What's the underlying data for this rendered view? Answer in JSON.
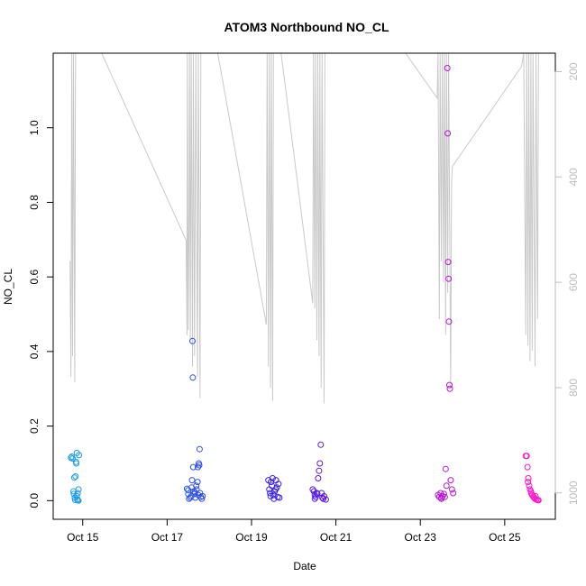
{
  "chart_data": {
    "type": "scatter",
    "title": "ATOM3 Northbound NO_CL",
    "xlabel": "Date",
    "ylabel": "NO_CL",
    "x_ticks": [
      "Oct 15",
      "Oct 17",
      "Oct 19",
      "Oct 21",
      "Oct 23",
      "Oct 25"
    ],
    "y_ticks": [
      "0.0",
      "0.2",
      "0.4",
      "0.6",
      "0.8",
      "1.0"
    ],
    "y2_ticks": [
      "200",
      "400",
      "600",
      "800",
      "1000"
    ],
    "xlim_days": [
      14.3,
      26.2
    ],
    "ylim": [
      -0.05,
      1.2
    ],
    "y2lim": [
      1050,
      165
    ],
    "y2_reversed": true,
    "grid": false,
    "legend": "none",
    "colors": {
      "points_start": "#1EA0E6",
      "points_mid": "#3A1AE6",
      "points_end": "#FF14C8",
      "pressure_line": "#c9c9c9",
      "axis": "#000000",
      "right_axis": "#bdbdbd"
    },
    "series": [
      {
        "type": "points",
        "points": [
          [
            14.72,
            0.115
          ],
          [
            14.74,
            0.118
          ],
          [
            14.76,
            0.113
          ],
          [
            14.78,
            0.025
          ],
          [
            14.79,
            0.018
          ],
          [
            14.8,
            0.062
          ],
          [
            14.81,
            0.008
          ],
          [
            14.82,
            0.002
          ],
          [
            14.83,
            0.065
          ],
          [
            14.84,
            0.104
          ],
          [
            14.85,
            0.1
          ],
          [
            14.86,
            0.128
          ],
          [
            14.86,
            0.012
          ],
          [
            14.87,
            0.003
          ],
          [
            14.88,
            0.02
          ],
          [
            14.89,
            0.001
          ],
          [
            14.9,
            0.0
          ],
          [
            14.9,
            0.03
          ],
          [
            14.91,
            0.122
          ],
          [
            17.47,
            0.032
          ],
          [
            17.5,
            0.018
          ],
          [
            17.52,
            0.005
          ],
          [
            17.55,
            0.008
          ],
          [
            17.57,
            0.012
          ],
          [
            17.59,
            0.055
          ],
          [
            17.6,
            0.428
          ],
          [
            17.61,
            0.33
          ],
          [
            17.62,
            0.09
          ],
          [
            17.63,
            0.025
          ],
          [
            17.65,
            0.018
          ],
          [
            17.67,
            0.008
          ],
          [
            17.69,
            0.04
          ],
          [
            17.7,
            0.03
          ],
          [
            17.72,
            0.05
          ],
          [
            17.73,
            0.09
          ],
          [
            17.75,
            0.1
          ],
          [
            17.76,
            0.095
          ],
          [
            17.77,
            0.138
          ],
          [
            17.78,
            0.02
          ],
          [
            17.8,
            0.01
          ],
          [
            17.82,
            0.005
          ],
          [
            17.84,
            0.012
          ],
          [
            17.5,
            0.028
          ],
          [
            17.58,
            0.035
          ],
          [
            17.66,
            0.022
          ],
          [
            17.74,
            0.015
          ],
          [
            19.4,
            0.055
          ],
          [
            19.42,
            0.03
          ],
          [
            19.44,
            0.02
          ],
          [
            19.46,
            0.05
          ],
          [
            19.48,
            0.04
          ],
          [
            19.5,
            0.06
          ],
          [
            19.52,
            0.015
          ],
          [
            19.55,
            0.025
          ],
          [
            19.58,
            0.055
          ],
          [
            19.6,
            0.035
          ],
          [
            19.62,
            0.01
          ],
          [
            19.64,
            0.045
          ],
          [
            19.66,
            0.008
          ],
          [
            19.45,
            0.012
          ],
          [
            19.53,
            0.005
          ],
          [
            19.57,
            0.03
          ],
          [
            20.45,
            0.03
          ],
          [
            20.48,
            0.025
          ],
          [
            20.5,
            0.015
          ],
          [
            20.52,
            0.01
          ],
          [
            20.55,
            0.02
          ],
          [
            20.58,
            0.06
          ],
          [
            20.6,
            0.08
          ],
          [
            20.62,
            0.1
          ],
          [
            20.64,
            0.15
          ],
          [
            20.66,
            0.02
          ],
          [
            20.7,
            0.005
          ],
          [
            20.72,
            0.012
          ],
          [
            20.76,
            0.003
          ],
          [
            20.5,
            0.005
          ],
          [
            20.56,
            0.018
          ],
          [
            20.68,
            0.008
          ],
          [
            23.42,
            0.015
          ],
          [
            23.45,
            0.01
          ],
          [
            23.48,
            0.02
          ],
          [
            23.5,
            0.005
          ],
          [
            23.53,
            0.012
          ],
          [
            23.56,
            0.018
          ],
          [
            23.6,
            0.085
          ],
          [
            23.62,
            0.04
          ],
          [
            23.64,
            1.16
          ],
          [
            23.65,
            0.985
          ],
          [
            23.66,
            0.64
          ],
          [
            23.67,
            0.595
          ],
          [
            23.68,
            0.48
          ],
          [
            23.69,
            0.31
          ],
          [
            23.7,
            0.3
          ],
          [
            23.72,
            0.055
          ],
          [
            23.75,
            0.03
          ],
          [
            23.78,
            0.02
          ],
          [
            23.5,
            0.008
          ],
          [
            23.58,
            0.01
          ],
          [
            25.5,
            0.12
          ],
          [
            25.52,
            0.12
          ],
          [
            25.54,
            0.09
          ],
          [
            25.56,
            0.06
          ],
          [
            25.58,
            0.04
          ],
          [
            25.6,
            0.03
          ],
          [
            25.62,
            0.025
          ],
          [
            25.65,
            0.015
          ],
          [
            25.68,
            0.01
          ],
          [
            25.7,
            0.008
          ],
          [
            25.72,
            0.005
          ],
          [
            25.75,
            0.003
          ],
          [
            25.78,
            0.002
          ],
          [
            25.8,
            0.001
          ],
          [
            25.55,
            0.05
          ],
          [
            25.63,
            0.02
          ],
          [
            25.73,
            0.012
          ]
        ]
      },
      {
        "type": "pressure_line",
        "points": [
          [
            14.7,
            560
          ],
          [
            14.72,
            780
          ],
          [
            14.74,
            165
          ],
          [
            14.76,
            740
          ],
          [
            14.78,
            165
          ],
          [
            14.81,
            790
          ],
          [
            14.83,
            165
          ],
          [
            14.86,
            165
          ],
          [
            15.45,
            165
          ],
          [
            17.45,
            520
          ],
          [
            17.47,
            700
          ],
          [
            17.48,
            165
          ],
          [
            17.5,
            690
          ],
          [
            17.52,
            480
          ],
          [
            17.53,
            165
          ],
          [
            17.55,
            710
          ],
          [
            17.57,
            165
          ],
          [
            17.6,
            760
          ],
          [
            17.62,
            165
          ],
          [
            17.65,
            740
          ],
          [
            17.68,
            165
          ],
          [
            17.72,
            780
          ],
          [
            17.74,
            165
          ],
          [
            17.78,
            820
          ],
          [
            17.8,
            165
          ],
          [
            18.2,
            165
          ],
          [
            19.35,
            680
          ],
          [
            19.37,
            165
          ],
          [
            19.4,
            760
          ],
          [
            19.42,
            165
          ],
          [
            19.45,
            800
          ],
          [
            19.47,
            165
          ],
          [
            19.5,
            825
          ],
          [
            19.52,
            165
          ],
          [
            19.7,
            165
          ],
          [
            20.45,
            640
          ],
          [
            20.47,
            165
          ],
          [
            20.5,
            650
          ],
          [
            20.52,
            165
          ],
          [
            20.55,
            710
          ],
          [
            20.57,
            165
          ],
          [
            20.6,
            740
          ],
          [
            20.62,
            165
          ],
          [
            20.65,
            800
          ],
          [
            20.67,
            165
          ],
          [
            20.72,
            830
          ],
          [
            20.74,
            165
          ],
          [
            22.65,
            165
          ],
          [
            23.4,
            250
          ],
          [
            23.42,
            165
          ],
          [
            23.45,
            670
          ],
          [
            23.47,
            165
          ],
          [
            23.5,
            560
          ],
          [
            23.52,
            165
          ],
          [
            23.55,
            600
          ],
          [
            23.57,
            165
          ],
          [
            23.6,
            700
          ],
          [
            23.62,
            165
          ],
          [
            23.65,
            620
          ],
          [
            23.67,
            165
          ],
          [
            23.72,
            800
          ],
          [
            23.74,
            410
          ],
          [
            23.76,
            380
          ],
          [
            25.4,
            190
          ],
          [
            25.45,
            165
          ],
          [
            25.5,
            700
          ],
          [
            25.52,
            165
          ],
          [
            25.55,
            720
          ],
          [
            25.57,
            165
          ],
          [
            25.6,
            750
          ],
          [
            25.62,
            165
          ],
          [
            25.65,
            730
          ],
          [
            25.67,
            165
          ],
          [
            25.72,
            760
          ],
          [
            25.74,
            165
          ],
          [
            25.78,
            670
          ],
          [
            25.8,
            165
          ]
        ]
      }
    ]
  }
}
